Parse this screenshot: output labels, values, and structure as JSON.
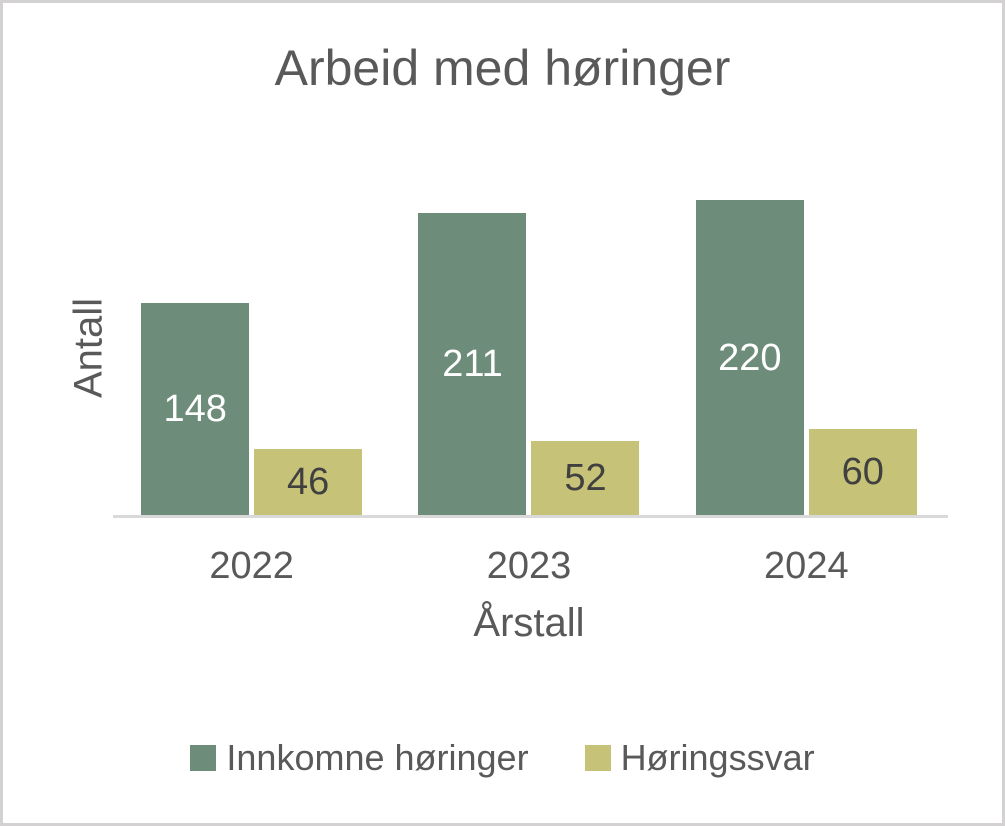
{
  "frame": {
    "background": "#ffffff",
    "border_color": "#d3d1d1"
  },
  "chart_data": {
    "type": "bar",
    "title": "Arbeid med høringer",
    "xlabel": "Årstall",
    "ylabel": "Antall",
    "categories": [
      "2022",
      "2023",
      "2024"
    ],
    "series": [
      {
        "name": "Innkomne høringer",
        "values": [
          148,
          211,
          220
        ],
        "color": "#6E8C7A",
        "label_color": "#FFFFFF"
      },
      {
        "name": "Høringssvar",
        "values": [
          46,
          52,
          60
        ],
        "color": "#C6C378",
        "label_color": "#404040"
      }
    ],
    "data_labels": true,
    "grid": false,
    "y_axis_ticks_visible": false,
    "legend_position": "bottom",
    "axis_line_color": "#D9D9D9",
    "text_color": "#595959"
  }
}
